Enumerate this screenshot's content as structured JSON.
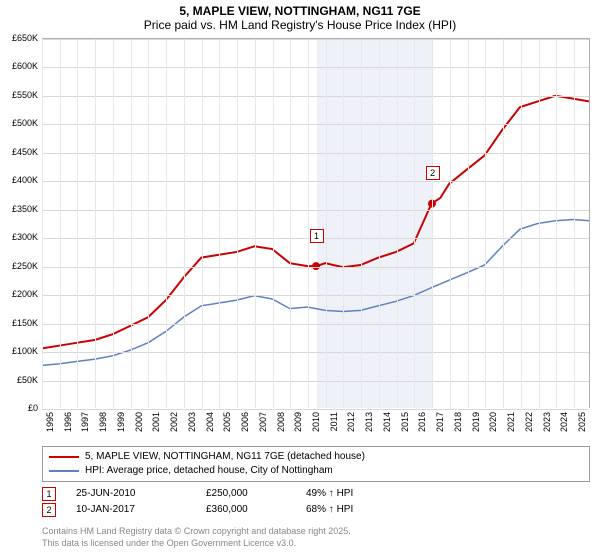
{
  "title": {
    "main": "5, MAPLE VIEW, NOTTINGHAM, NG11 7GE",
    "sub": "Price paid vs. HM Land Registry's House Price Index (HPI)"
  },
  "chart": {
    "type": "line",
    "background_color": "#ffffff",
    "grid_color": "#d8d8d8",
    "minor_grid_color": "#e8e8e8",
    "shade_color": "#eef2f8",
    "axis_color": "#b0b0b0",
    "title_fontsize": 12,
    "label_fontsize": 9,
    "x": {
      "min": 1995,
      "max": 2025.9,
      "ticks": [
        1995,
        1996,
        1997,
        1998,
        1999,
        2000,
        2001,
        2002,
        2003,
        2004,
        2005,
        2006,
        2007,
        2008,
        2009,
        2010,
        2011,
        2012,
        2013,
        2014,
        2015,
        2016,
        2017,
        2018,
        2019,
        2020,
        2021,
        2022,
        2023,
        2024,
        2025
      ],
      "shade_start": 2010.5,
      "shade_end": 2017.0
    },
    "y": {
      "min": 0,
      "max": 650000,
      "ticks": [
        0,
        50000,
        100000,
        150000,
        200000,
        250000,
        300000,
        350000,
        400000,
        450000,
        500000,
        550000,
        600000,
        650000
      ],
      "tick_labels": [
        "£0",
        "£50K",
        "£100K",
        "£150K",
        "£200K",
        "£250K",
        "£300K",
        "£350K",
        "£400K",
        "£450K",
        "£500K",
        "£550K",
        "£600K",
        "£650K"
      ]
    },
    "series": {
      "price_paid": {
        "label": "5, MAPLE VIEW, NOTTINGHAM, NG11 7GE (detached house)",
        "color": "#cc0000",
        "line_width": 2,
        "x": [
          1995,
          1996,
          1997,
          1998,
          1999,
          2000,
          2001,
          2002,
          2003,
          2004,
          2005,
          2006,
          2007,
          2008,
          2009,
          2010,
          2010.5,
          2011,
          2012,
          2013,
          2014,
          2015,
          2016,
          2017,
          2017.5,
          2018,
          2019,
          2020,
          2021,
          2022,
          2023,
          2024,
          2025,
          2025.9
        ],
        "y": [
          105000,
          110000,
          115000,
          120000,
          130000,
          145000,
          160000,
          190000,
          230000,
          265000,
          270000,
          275000,
          285000,
          280000,
          255000,
          250000,
          250000,
          255000,
          248000,
          252000,
          265000,
          275000,
          290000,
          360000,
          370000,
          395000,
          420000,
          445000,
          490000,
          530000,
          540000,
          550000,
          545000,
          540000
        ]
      },
      "hpi": {
        "label": "HPI: Average price, detached house, City of Nottingham",
        "color": "#6080c0",
        "line_width": 1.5,
        "x": [
          1995,
          1996,
          1997,
          1998,
          1999,
          2000,
          2001,
          2002,
          2003,
          2004,
          2005,
          2006,
          2007,
          2008,
          2009,
          2010,
          2011,
          2012,
          2013,
          2014,
          2015,
          2016,
          2017,
          2018,
          2019,
          2020,
          2021,
          2022,
          2023,
          2024,
          2025,
          2025.9
        ],
        "y": [
          75000,
          78000,
          82000,
          86000,
          92000,
          102000,
          115000,
          135000,
          160000,
          180000,
          185000,
          190000,
          198000,
          192000,
          175000,
          178000,
          172000,
          170000,
          172000,
          180000,
          188000,
          198000,
          212000,
          225000,
          238000,
          252000,
          285000,
          315000,
          325000,
          330000,
          332000,
          330000
        ]
      }
    },
    "sale_points": [
      {
        "n": "1",
        "x": 2010.48,
        "y": 250000
      },
      {
        "n": "2",
        "x": 2017.03,
        "y": 360000
      }
    ],
    "marker_color": "#cc0000"
  },
  "legend": {
    "border_color": "#999999"
  },
  "sales": [
    {
      "n": "1",
      "date": "25-JUN-2010",
      "price": "£250,000",
      "hpi": "49% ↑ HPI"
    },
    {
      "n": "2",
      "date": "10-JAN-2017",
      "price": "£360,000",
      "hpi": "68% ↑ HPI"
    }
  ],
  "footer": {
    "line1": "Contains HM Land Registry data © Crown copyright and database right 2025.",
    "line2": "This data is licensed under the Open Government Licence v3.0."
  }
}
